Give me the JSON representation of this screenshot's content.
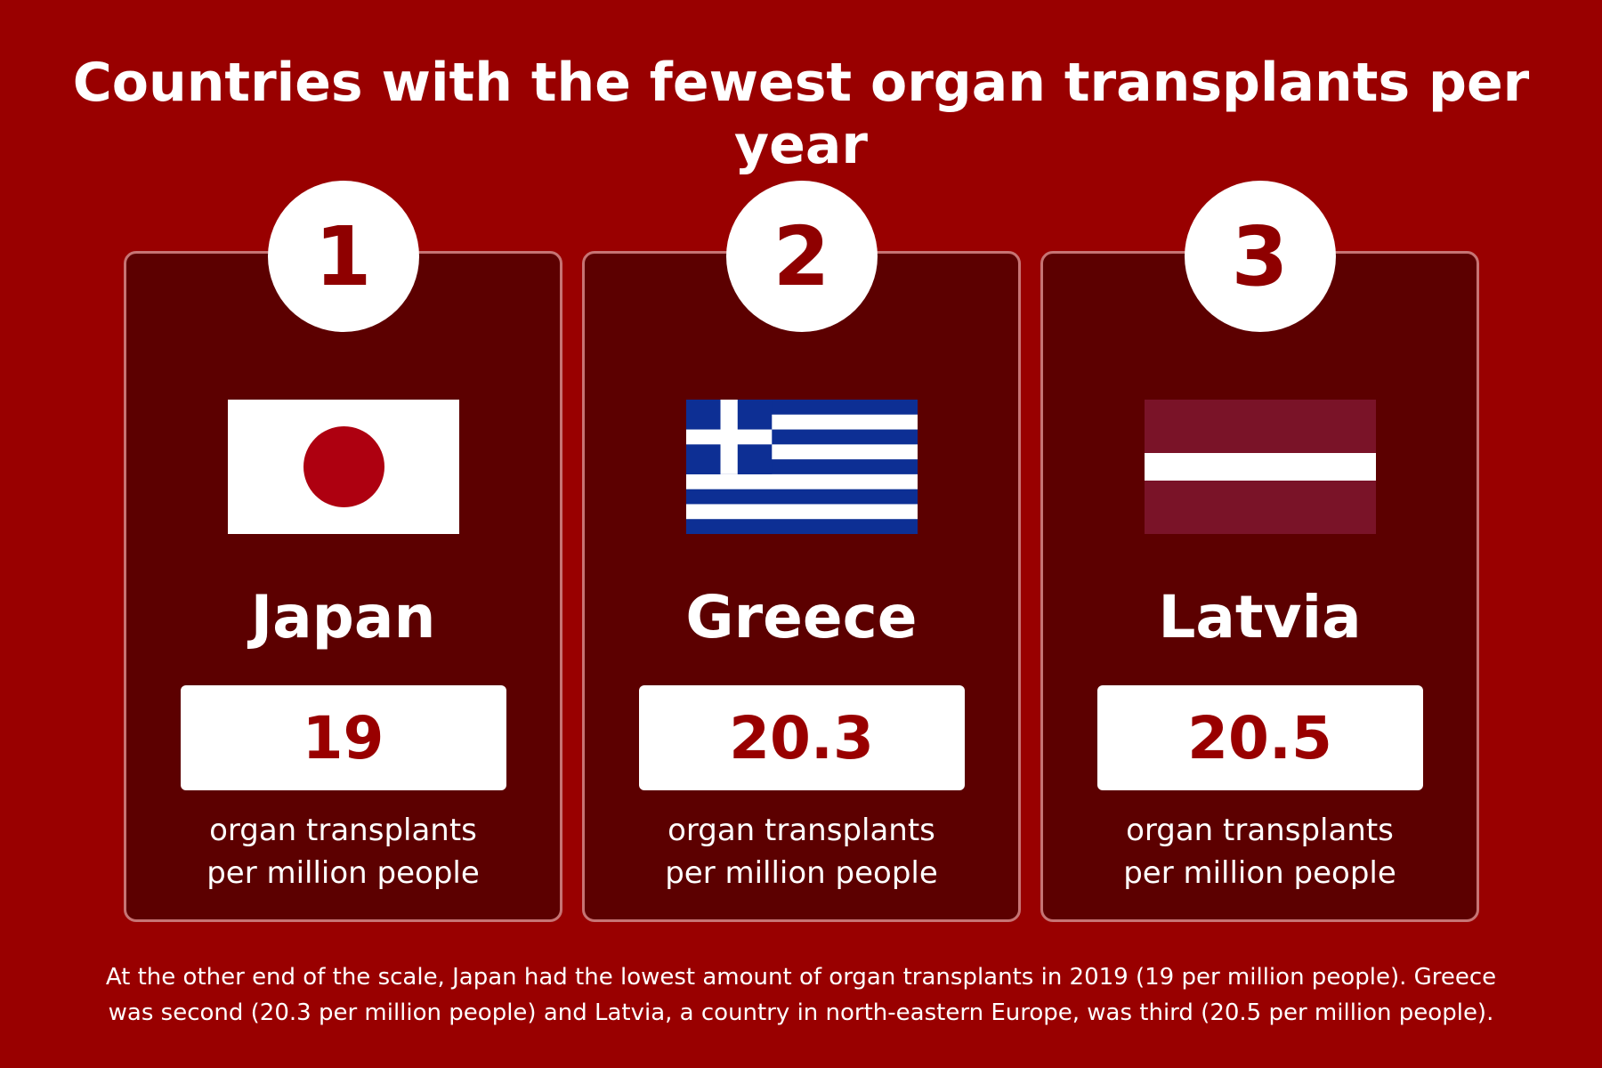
{
  "title": "Countries with the fewest organ transplants per year",
  "cards": [
    {
      "rank": "1",
      "country": "Japan",
      "value": "19",
      "unit_line1": "organ transplants",
      "unit_line2": "per million people",
      "flag_icon": "japan-flag-icon"
    },
    {
      "rank": "2",
      "country": "Greece",
      "value": "20.3",
      "unit_line1": "organ transplants",
      "unit_line2": "per million people",
      "flag_icon": "greece-flag-icon"
    },
    {
      "rank": "3",
      "country": "Latvia",
      "value": "20.5",
      "unit_line1": "organ transplants",
      "unit_line2": "per million people",
      "flag_icon": "latvia-flag-icon"
    }
  ],
  "footer": {
    "line1": "At the other end of the scale, Japan had the lowest amount of organ transplants in 2019 (19 per million people). Greece",
    "line2": "was second (20.3 per million people) and Latvia, a country in north-eastern Europe, was third (20.5 per million people)."
  },
  "colors": {
    "background": "#990000",
    "card": "#5c0000",
    "card_border": "#c67474",
    "accent_text": "#990000",
    "japan_red": "#ae0010",
    "greece_blue": "#0d2f94",
    "latvia_carmine": "#7a1328"
  }
}
